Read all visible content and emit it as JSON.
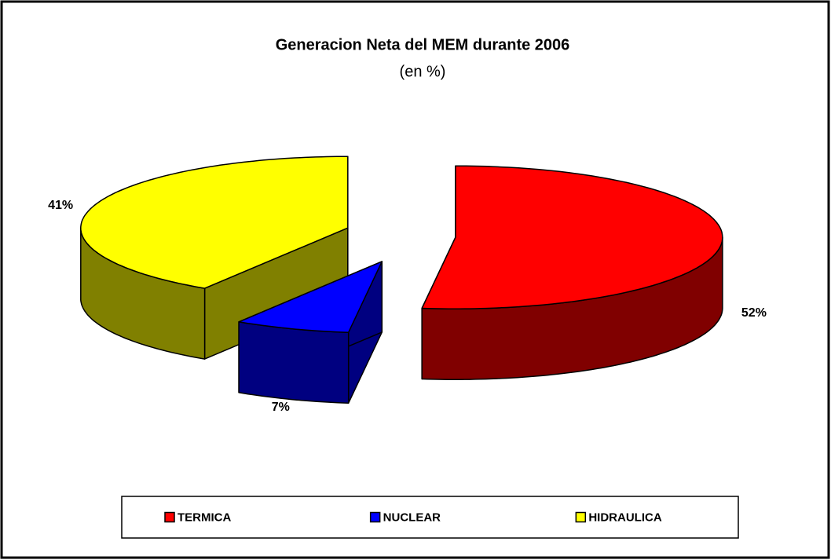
{
  "chart_data": {
    "type": "pie",
    "title": "Generacion Neta del MEM durante 2006",
    "subtitle": "(en %)",
    "categories": [
      "TERMICA",
      "NUCLEAR",
      "HIDRAULICA"
    ],
    "values": [
      52,
      7,
      41
    ],
    "value_labels": [
      "52%",
      "7%",
      "41%"
    ],
    "colors": [
      "#ff0000",
      "#0000ff",
      "#ffff00"
    ],
    "legend": "bottom"
  }
}
